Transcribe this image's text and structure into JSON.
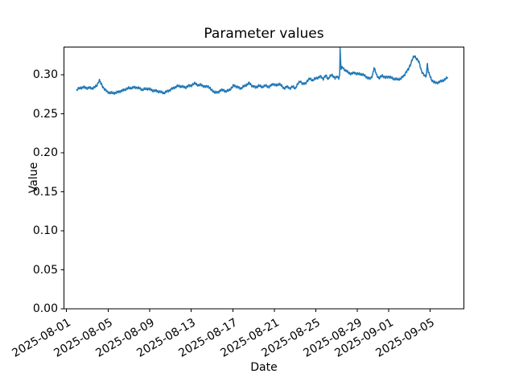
{
  "window": {
    "background": "#ffffff",
    "text_color": "#000000",
    "spine_color": "#000000"
  },
  "chart_data": {
    "type": "line",
    "title": "Parameter values",
    "xlabel": "Date",
    "ylabel": "Value",
    "grid": false,
    "legend": null,
    "x_axis": {
      "unit": "days since 2025-08-01 00:00",
      "lim_days": [
        -0.25,
        38.25
      ],
      "tick_days": [
        0,
        4,
        8,
        12,
        16,
        20,
        24,
        28,
        31,
        35
      ],
      "ticklabels": [
        "2025-08-01",
        "2025-08-05",
        "2025-08-09",
        "2025-08-13",
        "2025-08-17",
        "2025-08-21",
        "2025-08-25",
        "2025-08-29",
        "2025-09-01",
        "2025-09-05"
      ],
      "ticklabel_rotation_deg": 30
    },
    "y_axis": {
      "lim": [
        0,
        0.3358
      ],
      "ticks": [
        0,
        0.05,
        0.1,
        0.15,
        0.2,
        0.25,
        0.3
      ],
      "ticklabels": [
        "0.00",
        "0.05",
        "0.10",
        "0.15",
        "0.20",
        "0.25",
        "0.30"
      ]
    },
    "series": [
      {
        "name": "parameter-value-series",
        "color": "#1f77b4",
        "line_width": 1.5,
        "start_date": "2025-08-02",
        "end_date": "2025-09-06",
        "noise_band": 0.001,
        "points_day_value": [
          [
            0.98,
            0.281
          ],
          [
            1.15,
            0.2823
          ],
          [
            1.4,
            0.2835
          ],
          [
            1.65,
            0.2843
          ],
          [
            1.9,
            0.2833
          ],
          [
            2.15,
            0.2837
          ],
          [
            2.45,
            0.2828
          ],
          [
            2.7,
            0.2842
          ],
          [
            2.9,
            0.2858
          ],
          [
            3.05,
            0.2905
          ],
          [
            3.15,
            0.2936
          ],
          [
            3.3,
            0.289
          ],
          [
            3.6,
            0.2828
          ],
          [
            3.92,
            0.2782
          ],
          [
            4.2,
            0.277
          ],
          [
            4.5,
            0.2767
          ],
          [
            4.8,
            0.2773
          ],
          [
            5.1,
            0.279
          ],
          [
            5.4,
            0.28
          ],
          [
            5.7,
            0.2818
          ],
          [
            6.0,
            0.283
          ],
          [
            6.25,
            0.2834
          ],
          [
            6.6,
            0.2842
          ],
          [
            6.9,
            0.2836
          ],
          [
            7.3,
            0.281
          ],
          [
            7.6,
            0.282
          ],
          [
            7.9,
            0.2822
          ],
          [
            8.3,
            0.2802
          ],
          [
            8.7,
            0.2794
          ],
          [
            9.0,
            0.2782
          ],
          [
            9.35,
            0.2768
          ],
          [
            9.7,
            0.279
          ],
          [
            10.0,
            0.2812
          ],
          [
            10.4,
            0.284
          ],
          [
            10.75,
            0.2858
          ],
          [
            11.1,
            0.285
          ],
          [
            11.45,
            0.2842
          ],
          [
            11.75,
            0.286
          ],
          [
            12.05,
            0.2868
          ],
          [
            12.4,
            0.2894
          ],
          [
            12.7,
            0.2862
          ],
          [
            12.95,
            0.2878
          ],
          [
            13.3,
            0.2846
          ],
          [
            13.6,
            0.286
          ],
          [
            13.9,
            0.281
          ],
          [
            14.1,
            0.2794
          ],
          [
            14.3,
            0.2772
          ],
          [
            14.55,
            0.2778
          ],
          [
            14.8,
            0.28
          ],
          [
            15.1,
            0.281
          ],
          [
            15.35,
            0.2784
          ],
          [
            15.65,
            0.2808
          ],
          [
            15.9,
            0.283
          ],
          [
            16.1,
            0.2872
          ],
          [
            16.4,
            0.2846
          ],
          [
            16.8,
            0.2828
          ],
          [
            17.1,
            0.2855
          ],
          [
            17.6,
            0.2895
          ],
          [
            17.9,
            0.2858
          ],
          [
            18.2,
            0.2842
          ],
          [
            18.5,
            0.2862
          ],
          [
            18.8,
            0.2845
          ],
          [
            19.15,
            0.2862
          ],
          [
            19.5,
            0.2848
          ],
          [
            19.9,
            0.2888
          ],
          [
            20.2,
            0.2862
          ],
          [
            20.5,
            0.2888
          ],
          [
            20.9,
            0.2828
          ],
          [
            21.2,
            0.285
          ],
          [
            21.5,
            0.283
          ],
          [
            21.75,
            0.285
          ],
          [
            22.0,
            0.2828
          ],
          [
            22.25,
            0.288
          ],
          [
            22.5,
            0.2922
          ],
          [
            22.75,
            0.2882
          ],
          [
            23.0,
            0.2893
          ],
          [
            23.2,
            0.293
          ],
          [
            23.45,
            0.2952
          ],
          [
            23.7,
            0.293
          ],
          [
            24.0,
            0.2956
          ],
          [
            24.2,
            0.2968
          ],
          [
            24.5,
            0.298
          ],
          [
            24.7,
            0.295
          ],
          [
            24.95,
            0.2992
          ],
          [
            25.15,
            0.2952
          ],
          [
            25.4,
            0.2986
          ],
          [
            25.6,
            0.2996
          ],
          [
            25.85,
            0.2962
          ],
          [
            26.05,
            0.2976
          ],
          [
            26.2,
            0.2962
          ],
          [
            26.29,
            0.2996
          ],
          [
            26.33,
            0.334
          ],
          [
            26.43,
            0.3068
          ],
          [
            26.55,
            0.31
          ],
          [
            26.7,
            0.3075
          ],
          [
            26.9,
            0.3055
          ],
          [
            27.1,
            0.303
          ],
          [
            27.3,
            0.3018
          ],
          [
            27.5,
            0.302
          ],
          [
            27.7,
            0.3028
          ],
          [
            27.9,
            0.302
          ],
          [
            28.1,
            0.3012
          ],
          [
            28.45,
            0.3008
          ],
          [
            28.7,
            0.2988
          ],
          [
            29.0,
            0.2963
          ],
          [
            29.25,
            0.295
          ],
          [
            29.45,
            0.2998
          ],
          [
            29.6,
            0.309
          ],
          [
            29.75,
            0.304
          ],
          [
            29.85,
            0.2998
          ],
          [
            30.1,
            0.2956
          ],
          [
            30.4,
            0.2992
          ],
          [
            30.7,
            0.2966
          ],
          [
            31.0,
            0.298
          ],
          [
            31.15,
            0.2973
          ],
          [
            31.4,
            0.2953
          ],
          [
            31.7,
            0.2946
          ],
          [
            31.9,
            0.294
          ],
          [
            32.15,
            0.2954
          ],
          [
            32.45,
            0.2985
          ],
          [
            32.7,
            0.3042
          ],
          [
            32.9,
            0.3068
          ],
          [
            33.1,
            0.3135
          ],
          [
            33.3,
            0.3205
          ],
          [
            33.42,
            0.3228
          ],
          [
            33.53,
            0.324
          ],
          [
            33.65,
            0.3216
          ],
          [
            33.8,
            0.3196
          ],
          [
            33.95,
            0.3155
          ],
          [
            34.15,
            0.306
          ],
          [
            34.35,
            0.301
          ],
          [
            34.5,
            0.2982
          ],
          [
            34.62,
            0.2988
          ],
          [
            34.74,
            0.3153
          ],
          [
            34.82,
            0.304
          ],
          [
            34.95,
            0.2998
          ],
          [
            35.1,
            0.2942
          ],
          [
            35.35,
            0.2912
          ],
          [
            35.6,
            0.2895
          ],
          [
            35.85,
            0.2912
          ],
          [
            36.1,
            0.292
          ],
          [
            36.35,
            0.2937
          ],
          [
            36.67,
            0.2963
          ]
        ]
      }
    ]
  }
}
